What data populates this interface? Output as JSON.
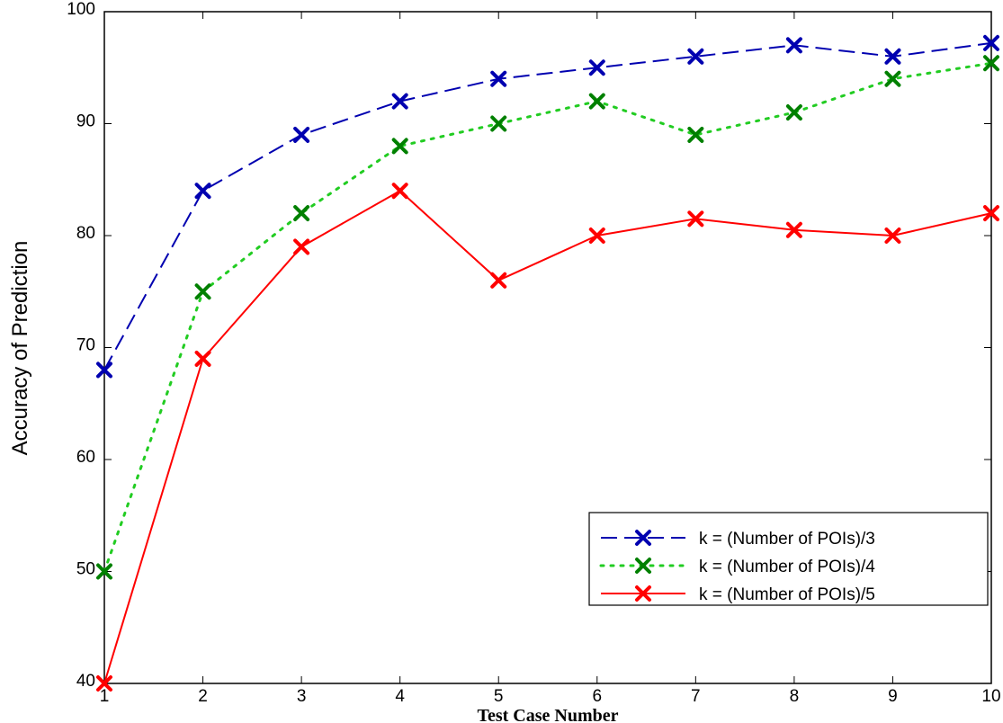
{
  "chart_data": {
    "type": "line",
    "title": "",
    "xlabel": "Test Case Number",
    "ylabel": "Accuracy of Prediction",
    "x": [
      1,
      2,
      3,
      4,
      5,
      6,
      7,
      8,
      9,
      10
    ],
    "xlim": [
      1,
      10
    ],
    "ylim": [
      40,
      100
    ],
    "xticks": [
      "1",
      "2",
      "3",
      "4",
      "5",
      "6",
      "7",
      "8",
      "9",
      "10"
    ],
    "yticks": [
      "40",
      "50",
      "60",
      "70",
      "80",
      "90",
      "100"
    ],
    "grid": false,
    "legend_position": "bottom-right",
    "series": [
      {
        "name": "k = (Number of POIs)/3",
        "color": "#0000b0",
        "line_style": "dashed",
        "marker": "x",
        "values": [
          68,
          84,
          89,
          92,
          94,
          95,
          96,
          97,
          96,
          97.2
        ]
      },
      {
        "name": "k = (Number of POIs)/4",
        "color": "#008000",
        "line_color": "#22cc22",
        "line_style": "dotted",
        "marker": "x",
        "values": [
          50,
          75,
          82,
          88,
          90,
          92,
          89,
          91,
          94,
          95.4
        ]
      },
      {
        "name": "k = (Number of POIs)/5",
        "color": "#ff0000",
        "line_style": "solid",
        "marker": "x",
        "values": [
          40,
          69,
          79,
          84,
          76,
          80,
          81.5,
          80.5,
          80,
          82
        ]
      }
    ]
  }
}
